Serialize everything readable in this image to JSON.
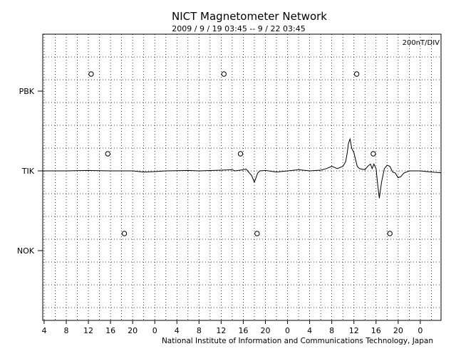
{
  "chart_data": {
    "type": "line",
    "title": "NICT Magnetometer Network",
    "subtitle": "2009 / 9 / 19   03:45 --  9 / 22   03:45",
    "scale_label": "200nT/DIV",
    "footer": "National Institute of Information and Communications Technology, Japan",
    "grid": true,
    "grid_style": "dotted",
    "y_divisions_per_station": 7,
    "hours_per_division": 2,
    "x_start_hour": 3.75,
    "x_end_hour": 75.75,
    "x_tick_labels": [
      "4",
      "8",
      "12",
      "16",
      "20",
      "0",
      "4",
      "8",
      "12",
      "16",
      "20",
      "0",
      "4",
      "8",
      "12",
      "16",
      "20",
      "0"
    ],
    "stations": [
      "PBK",
      "TIK",
      "NOK"
    ],
    "local_noon_markers": [
      {
        "station": "PBK",
        "hours": [
          12.5,
          36.5,
          60.5
        ]
      },
      {
        "station": "TIK",
        "hours": [
          15.5,
          39.5,
          63.5
        ]
      },
      {
        "station": "NOK",
        "hours": [
          18.5,
          42.5,
          66.5
        ]
      }
    ],
    "series": [
      {
        "name": "TIK",
        "color": "#000000",
        "x": [
          3.75,
          8,
          12,
          16,
          20,
          22,
          24,
          26,
          30,
          32,
          36,
          38,
          38.5,
          40,
          40.5,
          41.5,
          42,
          42.3,
          42.6,
          43,
          44,
          46,
          48,
          50,
          52,
          54,
          55,
          56,
          57,
          58,
          58.5,
          58.8,
          59,
          59.3,
          59.6,
          60,
          60.3,
          60.6,
          61,
          62,
          62.5,
          63,
          63.3,
          63.6,
          64,
          64.3,
          64.6,
          65,
          65.5,
          66,
          66.5,
          67,
          67.5,
          68,
          68.5,
          69,
          70,
          72,
          74,
          75.75
        ],
        "values": [
          0,
          0,
          0.02,
          0,
          0,
          -0.05,
          -0.03,
          0,
          0.02,
          0,
          0.03,
          0.05,
          0,
          0.05,
          0.08,
          -0.2,
          -0.5,
          -0.3,
          -0.1,
          0,
          0.02,
          -0.05,
          0,
          0.05,
          0,
          0.03,
          0.1,
          0.2,
          0.1,
          0.2,
          0.4,
          0.8,
          1.2,
          1.4,
          1.0,
          0.8,
          0.5,
          0.2,
          0.1,
          0.05,
          0.2,
          0.3,
          0.1,
          0.3,
          0.1,
          -0.6,
          -1.2,
          -0.5,
          0.1,
          0.25,
          0.2,
          -0.05,
          -0.1,
          -0.3,
          -0.25,
          -0.1,
          0,
          0,
          -0.05,
          -0.08
        ]
      }
    ]
  }
}
